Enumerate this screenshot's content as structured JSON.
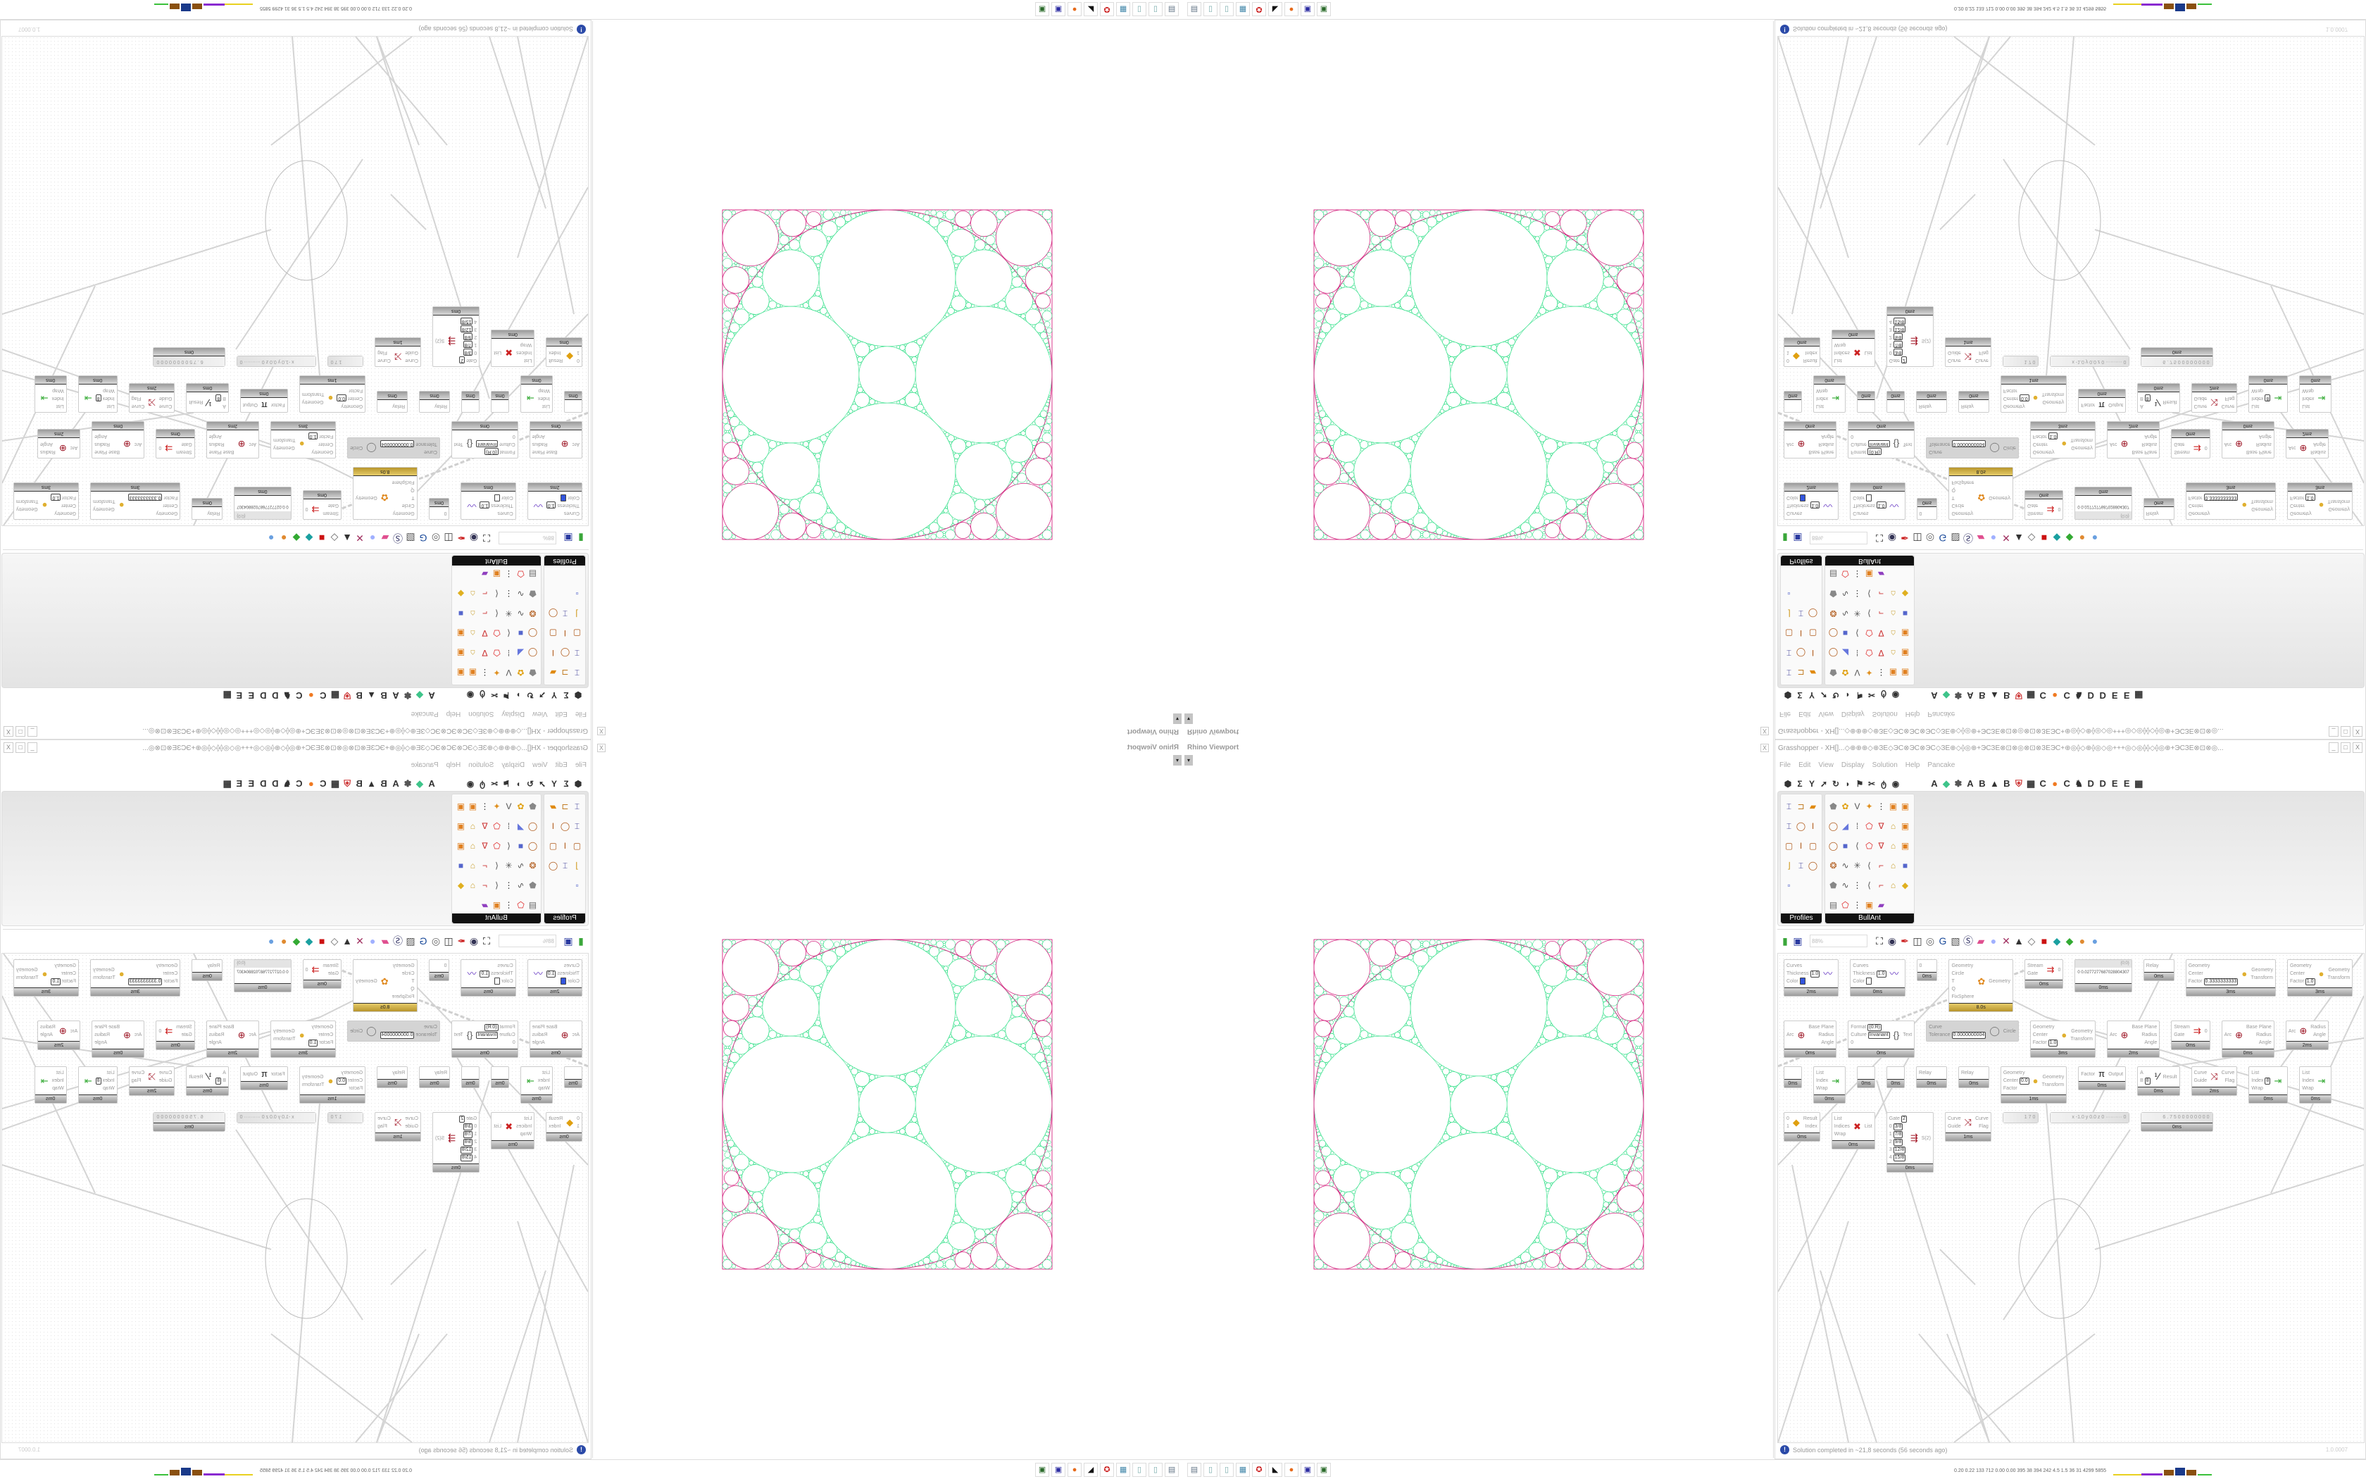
{
  "viewport": {
    "title": "Rhino Viewport",
    "close": "X",
    "dropdown": "▾"
  },
  "colors": {
    "circle_green": "#35e08a",
    "circle_magenta": "#d4237f",
    "gold": "#d8b548",
    "status_icon": "#2b4aa8"
  },
  "gh": {
    "title": "Grasshopper - XH[]...◇⊕⊕⊕◇⊕ЗЕ◇ЭС⊗ЭС⊗ЭС◇ЗЕ⊕◇⟠◎⊕+ЭСЗЕ⊗⊡⊗◎⊗⊡⊗ЗЕЭС+⊕◎⟠◇⊕⟠◎◇◎+++◎◇◎⟠⟠◇⟠◎⊕+ЭСЗЕ⊗⊡⊗◎...",
    "window_controls": [
      "_",
      "□",
      "X"
    ],
    "menu": [
      "File",
      "Edit",
      "View",
      "Display",
      "Solution",
      "Help",
      "Pancake"
    ],
    "tab_icons_left": [
      "hexagon-icon",
      "sigma-icon",
      "branch-icon",
      "arrow-icon",
      "hook-icon",
      "leaf-icon",
      "flag-icon",
      "scissors-icon",
      "wing-icon",
      "eye-icon"
    ],
    "tab_letters": [
      "A",
      "◆",
      "✽",
      "A",
      "B",
      "▲",
      "B",
      "⛨",
      "▦",
      "C",
      "●",
      "C",
      "♞",
      "D",
      "D",
      "E",
      "E",
      "▦"
    ],
    "panels": [
      {
        "label": "Profiles",
        "icons": [
          "ibeam-profile",
          "channel-profile",
          "extrusion",
          "ibeam-profile",
          "ring-profile",
          "ibeam",
          "box-profile",
          "ibeam",
          "box-profile",
          "angle-profile",
          "ibeam-profile",
          "ring-profile",
          "points"
        ]
      },
      {
        "label": "BullAnt",
        "icons": [
          "solid",
          "flower",
          "v-shape",
          "vertex",
          "array",
          "frame",
          "frame",
          "ring",
          "plane",
          "grid-lines",
          "polygon-red",
          "v-frame",
          "lock",
          "frame",
          "ring",
          "cube",
          "polyline",
          "polygon-red",
          "v-frame",
          "lock",
          "frame",
          "sphere-net",
          "curve",
          "network",
          "polyline",
          "corner",
          "lock",
          "cube",
          "solid",
          "curve",
          "array",
          "polyline",
          "corner",
          "lock",
          "gem",
          "panel",
          "polygon-red",
          "array",
          "frame",
          "rainbow"
        ]
      }
    ],
    "zoom": "88%",
    "canvas_tools": [
      "new-file-icon",
      "save-icon",
      "zoom-extents-icon",
      "eye-icon",
      "brush-icon",
      "sketch-icon",
      "paint-icon",
      "gha-icon",
      "cluster-icon",
      "search-icon",
      "package-icon",
      "bulb-icon",
      "twist-icon",
      "bell-icon",
      "ring-icon",
      "red-cube-icon",
      "teal-shape-icon",
      "green-shape-icon",
      "sphere-icon",
      "blue-sphere-icon"
    ],
    "status": "Solution completed in ~21,8 seconds (56 seconds ago)",
    "status_icon": "!",
    "version": "1.0.0007"
  },
  "canvas": {
    "nodes": [
      {
        "in": [
          {
            "l": "Curves"
          },
          {
            "l": "Thickness",
            "v": "1.0"
          },
          {
            "l": "Color",
            "sw": "#3355dd"
          }
        ],
        "out": [],
        "icon": "preview-curve",
        "time": "2ms"
      },
      {
        "in": [
          {
            "l": "Curves"
          },
          {
            "l": "Thickness",
            "v": "1.0"
          },
          {
            "l": "Color",
            "sw": "#ffffff"
          }
        ],
        "out": [],
        "icon": "preview-curve",
        "time": "0ms"
      },
      {
        "in": [
          {
            "l": "0"
          }
        ],
        "out": [],
        "icon": "",
        "time": "0ms"
      },
      {
        "in": [
          {
            "l": "Geometry"
          },
          {
            "l": "Circle"
          },
          {
            "l": "T"
          },
          {
            "l": "Q"
          },
          {
            "l": "FixSphere"
          }
        ],
        "out": [
          "Geometry"
        ],
        "icon": "pancake",
        "time": "8.0s",
        "gold": true
      },
      {
        "in": [
          {
            "l": "Stream"
          },
          {
            "l": "Gate"
          }
        ],
        "out": [
          "0"
        ],
        "icon": "stream-gate",
        "time": "0ms"
      },
      {
        "in": [],
        "out": [],
        "icon": "",
        "time": "0ms",
        "header": "{0;0}",
        "body": "0  0.0277277687028804307"
      },
      {
        "in": [
          {
            "l": "Relay"
          }
        ],
        "out": [],
        "icon": "",
        "time": "0ms"
      },
      {
        "in": [
          {
            "l": "Geometry"
          },
          {
            "l": "Center"
          },
          {
            "l": "Factor",
            "v": "0.3333333333"
          }
        ],
        "out": [
          "Geometry",
          "Transform"
        ],
        "icon": "scale",
        "time": "3ms"
      },
      {
        "in": [
          {
            "l": "Geometry"
          },
          {
            "l": "Center"
          },
          {
            "l": "Factor",
            "v": "1.0"
          }
        ],
        "out": [
          "Geometry",
          "Transform"
        ],
        "icon": "scale",
        "time": "3ms"
      },
      {
        "in": [
          {
            "l": "Arc"
          }
        ],
        "out": [
          "Base Plane",
          "Radius",
          "Angle"
        ],
        "icon": "deconstruct-arc",
        "time": "0ms"
      },
      {
        "in": [
          {
            "l": "Format",
            "v": "{0:R}"
          },
          {
            "l": "Culture",
            "v": "Invariant"
          },
          {
            "l": "0"
          }
        ],
        "out": [
          "Text"
        ],
        "icon": "format",
        "time": "0ms"
      },
      {
        "in": [
          {
            "l": "Curve"
          },
          {
            "l": "Tolerance",
            "v": "0.0000000004"
          }
        ],
        "out": [
          "Circle"
        ],
        "icon": "curve-circle",
        "time": "",
        "disabled": true
      },
      {
        "in": [
          {
            "l": "Geometry"
          },
          {
            "l": "Center"
          },
          {
            "l": "Factor",
            "v": "1.0"
          }
        ],
        "out": [
          "Geometry",
          "Transform"
        ],
        "icon": "scale",
        "time": "3ms"
      },
      {
        "in": [
          {
            "l": "Arc"
          }
        ],
        "out": [
          "Base Plane",
          "Radius",
          "Angle"
        ],
        "icon": "deconstruct-arc",
        "time": "2ms"
      },
      {
        "in": [
          {
            "l": "Stream"
          },
          {
            "l": "Gate"
          }
        ],
        "out": [
          "0"
        ],
        "icon": "stream-gate",
        "time": "0ms"
      },
      {
        "in": [
          {
            "l": "Arc"
          }
        ],
        "out": [
          "Base Plane",
          "Radius",
          "Angle"
        ],
        "icon": "deconstruct-arc",
        "time": "0ms"
      },
      {
        "in": [
          {
            "l": "Arc"
          }
        ],
        "out": [
          "Radius",
          "Angle"
        ],
        "icon": "deconstruct-arc",
        "time": "2ms"
      },
      {
        "in": [
          {
            "l": ""
          }
        ],
        "out": [],
        "icon": "",
        "time": "0ms"
      },
      {
        "in": [
          {
            "l": "List"
          },
          {
            "l": "Index"
          },
          {
            "l": "Wrap"
          }
        ],
        "out": [
          ""
        ],
        "icon": "list-item",
        "time": "0ms"
      },
      {
        "in": [
          {
            "l": ""
          }
        ],
        "out": [],
        "icon": "",
        "time": "0ms"
      },
      {
        "in": [
          {
            "l": ""
          }
        ],
        "out": [],
        "icon": "",
        "time": "0ms"
      },
      {
        "in": [
          {
            "l": "Relay"
          }
        ],
        "out": [],
        "icon": "",
        "time": "0ms"
      },
      {
        "in": [
          {
            "l": "Relay"
          }
        ],
        "out": [],
        "icon": "",
        "time": "0ms"
      },
      {
        "in": [
          {
            "l": "Geometry"
          },
          {
            "l": "Center",
            "v": "0.0"
          },
          {
            "l": "Factor"
          }
        ],
        "out": [
          "Geometry",
          "Transform"
        ],
        "icon": "scale",
        "time": "1ms"
      },
      {
        "in": [
          {
            "l": "Factor"
          }
        ],
        "out": [
          "Output"
        ],
        "icon": "pi",
        "time": "0ms"
      },
      {
        "in": [
          {
            "l": "A"
          },
          {
            "l": "B",
            "v": "8"
          }
        ],
        "out": [
          "Result"
        ],
        "icon": "division",
        "time": "0ms"
      },
      {
        "in": [
          {
            "l": "Curve"
          },
          {
            "l": "Guide"
          }
        ],
        "out": [
          "Curve",
          "Flag"
        ],
        "icon": "flip-curve",
        "time": "2ms"
      },
      {
        "in": [
          {
            "l": "List"
          },
          {
            "l": "Index",
            "v": "8"
          },
          {
            "l": "Wrap"
          }
        ],
        "out": [
          ""
        ],
        "icon": "list-item",
        "time": "0ms"
      },
      {
        "in": [
          {
            "l": "List"
          },
          {
            "l": "Index"
          },
          {
            "l": "Wrap"
          }
        ],
        "out": [
          ""
        ],
        "icon": "list-item",
        "time": "0ms"
      },
      {
        "in": [
          {
            "l": "0"
          },
          {
            "l": "1"
          }
        ],
        "out": [
          "Result",
          "Index"
        ],
        "icon": "dispatch",
        "time": "0ms"
      },
      {
        "in": [
          {
            "l": "List"
          },
          {
            "l": "Indices"
          },
          {
            "l": "Wrap"
          }
        ],
        "out": [
          "List"
        ],
        "icon": "cull-index",
        "time": "0ms"
      },
      {
        "in": [
          {
            "l": "Gate",
            "v": "2"
          },
          {
            "l": "0",
            "v": "3/8"
          },
          {
            "l": "1",
            "v": "7/8"
          },
          {
            "l": "2",
            "v": "9/8"
          },
          {
            "l": "3",
            "v": "12/8"
          },
          {
            "l": "4",
            "v": "15/8"
          }
        ],
        "out": [
          "S(2)"
        ],
        "icon": "stream-filter",
        "time": "0ms"
      },
      {
        "in": [
          {
            "l": "Curve"
          },
          {
            "l": "Guide"
          }
        ],
        "out": [
          "Curve",
          "Flag"
        ],
        "icon": "flip-curve",
        "time": "1ms"
      }
    ],
    "sliders": [
      {
        "value": "1 7 0"
      },
      {
        "value": "x -1.0  y 0.0  z 0   ·········· 0"
      },
      {
        "value": "6 . 7 5 0 0 0 0 0 0 0 0",
        "time": "0ms"
      }
    ]
  },
  "taskbar": {
    "icons": [
      "terminal-icon",
      "notepad-icon",
      "notepad-icon",
      "calculator-icon",
      "shield-app-icon",
      "wolf-icon",
      "firefox-icon",
      "floppy-64-icon",
      "server-icon"
    ],
    "tray": "0.20 0.22  133  712  0.00 0.00  395  38  394  242  4.5  1.5  36  31  4299 5855"
  }
}
